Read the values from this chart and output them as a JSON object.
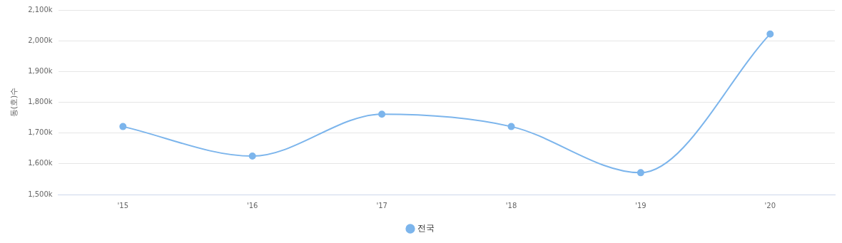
{
  "chart_data": {
    "type": "line",
    "ylabel": "동(호)수",
    "categories": [
      "'15",
      "'16",
      "'17",
      "'18",
      "'19",
      "'20"
    ],
    "series": [
      {
        "name": "전국",
        "color": "#7cb5ec",
        "values": [
          1721,
          1625,
          1761,
          1721,
          1571,
          2022
        ]
      }
    ],
    "ylim": [
      1500,
      2100
    ],
    "yticks": [
      {
        "value": 1500,
        "label": "1,500k"
      },
      {
        "value": 1600,
        "label": "1,600k"
      },
      {
        "value": 1700,
        "label": "1,700k"
      },
      {
        "value": 1800,
        "label": "1,800k"
      },
      {
        "value": 1900,
        "label": "1,900k"
      },
      {
        "value": 2000,
        "label": "2,000k"
      },
      {
        "value": 2100,
        "label": "2,100k"
      }
    ],
    "grid": "y",
    "legend": "bottom",
    "marker": "circle",
    "line_style": "solid"
  }
}
